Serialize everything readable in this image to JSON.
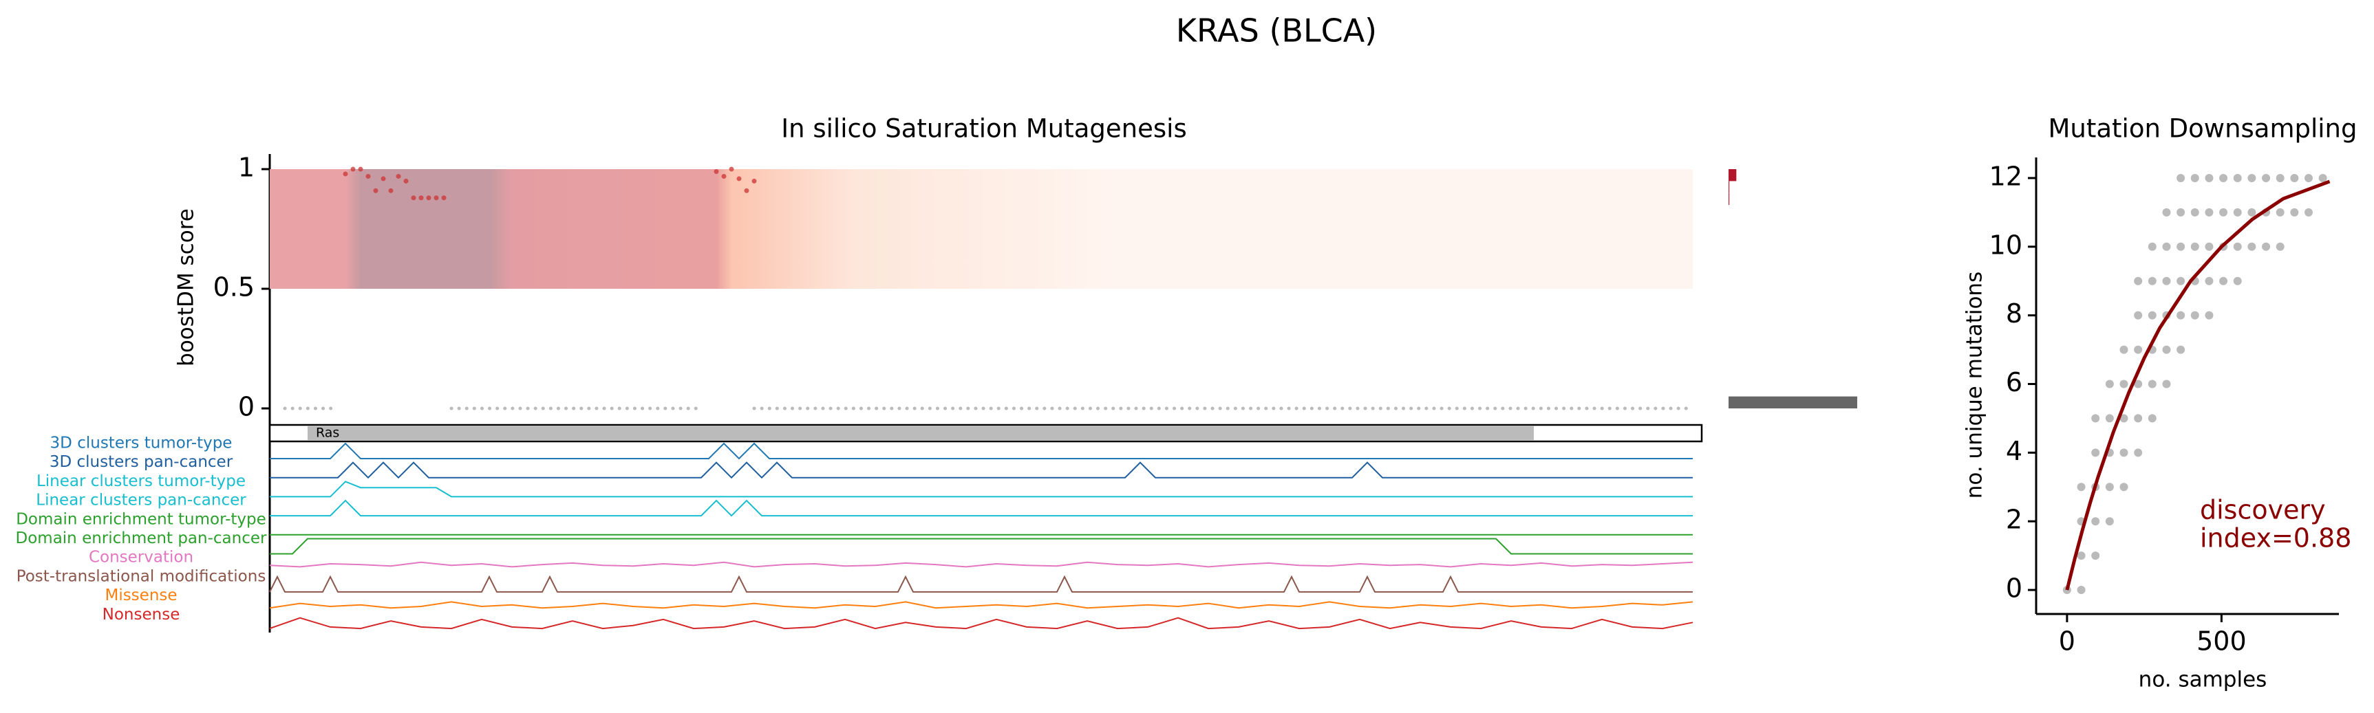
{
  "figure_title": "KRAS (BLCA)",
  "chart_data": [
    {
      "type": "saturation",
      "title": "In silico Saturation Mutagenesis",
      "ylabel": "boostDM score",
      "xlim": [
        1,
        189
      ],
      "ylim": [
        0,
        1
      ],
      "yticks": [
        0,
        0.5,
        1
      ],
      "heatmap_band": [
        0.5,
        1
      ],
      "heatmap_stops": [
        {
          "pos": 1,
          "color": "#e9a3a6"
        },
        {
          "pos": 11,
          "color": "#e9a3a6"
        },
        {
          "pos": 13,
          "color": "#c59aa2"
        },
        {
          "pos": 30,
          "color": "#c59aa2"
        },
        {
          "pos": 33,
          "color": "#e49ea3"
        },
        {
          "pos": 60,
          "color": "#e9a0a0"
        },
        {
          "pos": 62,
          "color": "#fcc5b0"
        },
        {
          "pos": 78,
          "color": "#fde6da"
        },
        {
          "pos": 113,
          "color": "#fff5f0"
        },
        {
          "pos": 189,
          "color": "#fff5f0"
        }
      ],
      "mutations": {
        "color": "#cc3333",
        "x": [
          11,
          12,
          13,
          14,
          15,
          16,
          17,
          18,
          19,
          20,
          21,
          22,
          23,
          24,
          60,
          61,
          62,
          63,
          64,
          65
        ],
        "values": [
          0.98,
          1.0,
          1.0,
          0.97,
          0.91,
          0.96,
          0.91,
          0.97,
          0.95,
          0.88,
          0.88,
          0.88,
          0.88,
          0.88,
          0.99,
          0.97,
          1.0,
          0.96,
          0.91,
          0.95
        ]
      },
      "low_score_segments": [
        {
          "start": 3,
          "end": 10,
          "score": 0
        },
        {
          "start": 25,
          "end": 58,
          "score": 0
        },
        {
          "start": 65,
          "end": 189,
          "score": 0
        }
      ],
      "side_histogram": {
        "xlim": [
          0,
          165
        ],
        "bins": [
          0,
          0.05,
          0.1,
          0.15,
          0.2,
          0.25,
          0.3,
          0.35,
          0.4,
          0.45,
          0.5,
          0.55,
          0.6,
          0.65,
          0.7,
          0.75,
          0.8,
          0.85,
          0.9,
          0.95,
          1
        ],
        "counts": [
          165,
          0,
          0,
          0,
          0,
          0,
          0,
          0,
          0,
          0,
          0,
          0,
          0,
          0,
          0,
          0,
          0,
          1,
          1,
          10
        ],
        "colors": [
          "#666666",
          "#666666",
          "#666666",
          "#666666",
          "#666666",
          "#666666",
          "#666666",
          "#666666",
          "#666666",
          "#666666",
          "#b2182b",
          "#b2182b",
          "#b2182b",
          "#b2182b",
          "#b2182b",
          "#b2182b",
          "#b2182b",
          "#b2182b",
          "#b2182b",
          "#b2182b"
        ]
      },
      "domains": [
        {
          "name": "Ras",
          "start": 6,
          "end": 168
        }
      ],
      "tracks": [
        {
          "name": "3D clusters tumor-type",
          "color": "#1f77b4",
          "x": [
            1,
            9,
            11,
            13,
            59,
            61,
            63,
            65,
            67,
            189
          ],
          "values": [
            0,
            0,
            1,
            0,
            0,
            1,
            0,
            1,
            0,
            0
          ]
        },
        {
          "name": "3D clusters pan-cancer",
          "color": "#1f5fa0",
          "x": [
            1,
            10,
            12,
            14,
            16,
            18,
            20,
            22,
            58,
            60,
            62,
            64,
            66,
            68,
            70,
            114,
            116,
            118,
            144,
            146,
            148,
            189
          ],
          "values": [
            0,
            0,
            1,
            0,
            1,
            0,
            1,
            0,
            0,
            1,
            0,
            1,
            0,
            1,
            0,
            0,
            1,
            0,
            0,
            1,
            0,
            0
          ]
        },
        {
          "name": "Linear clusters tumor-type",
          "color": "#17becf",
          "x": [
            1,
            9,
            11,
            13,
            23,
            25,
            189
          ],
          "values": [
            0,
            0,
            1,
            0.6,
            0.6,
            0,
            0
          ]
        },
        {
          "name": "Linear clusters pan-cancer",
          "color": "#17becf",
          "x": [
            1,
            9,
            11,
            13,
            58,
            60,
            62,
            64,
            66,
            189
          ],
          "values": [
            0,
            0,
            1,
            0,
            0,
            1,
            0,
            1,
            0,
            0
          ]
        },
        {
          "name": "Domain enrichment tumor-type",
          "color": "#2ca02c",
          "x": [
            1,
            189
          ],
          "values": [
            0,
            0
          ]
        },
        {
          "name": "Domain enrichment pan-cancer",
          "color": "#2ca02c",
          "x": [
            1,
            4,
            6,
            163,
            165,
            189
          ],
          "values": [
            0,
            0,
            1,
            1,
            0,
            0
          ]
        },
        {
          "name": "Conservation",
          "color": "#e377c2",
          "x": [
            1,
            5,
            9,
            13,
            17,
            21,
            25,
            29,
            33,
            37,
            41,
            45,
            49,
            53,
            57,
            61,
            65,
            69,
            73,
            77,
            81,
            85,
            89,
            93,
            97,
            101,
            105,
            109,
            113,
            117,
            121,
            125,
            129,
            133,
            137,
            141,
            145,
            149,
            153,
            157,
            161,
            165,
            169,
            173,
            177,
            181,
            185,
            189
          ],
          "values": [
            0.5,
            0.4,
            0.6,
            0.55,
            0.45,
            0.7,
            0.5,
            0.6,
            0.4,
            0.55,
            0.65,
            0.5,
            0.45,
            0.6,
            0.5,
            0.7,
            0.4,
            0.55,
            0.6,
            0.45,
            0.5,
            0.65,
            0.55,
            0.4,
            0.6,
            0.5,
            0.45,
            0.7,
            0.55,
            0.5,
            0.6,
            0.4,
            0.55,
            0.65,
            0.5,
            0.45,
            0.6,
            0.5,
            0.55,
            0.4,
            0.6,
            0.5,
            0.65,
            0.45,
            0.55,
            0.5,
            0.6,
            0.7
          ]
        },
        {
          "name": "Post-translational modifications",
          "color": "#8c564b",
          "x": [
            1,
            2,
            3,
            8,
            9,
            10,
            29,
            30,
            31,
            37,
            38,
            39,
            62,
            63,
            64,
            84,
            85,
            86,
            105,
            106,
            107,
            135,
            136,
            137,
            145,
            146,
            147,
            156,
            157,
            158,
            189
          ],
          "values": [
            0,
            1,
            0,
            0,
            1,
            0,
            0,
            1,
            0,
            0,
            1,
            0,
            0,
            1,
            0,
            0,
            1,
            0,
            0,
            1,
            0,
            0,
            1,
            0,
            0,
            1,
            0,
            0,
            1,
            0,
            0
          ]
        },
        {
          "name": "Missense",
          "color": "#ff7f0e",
          "x": [
            1,
            5,
            9,
            13,
            17,
            21,
            25,
            29,
            33,
            37,
            41,
            45,
            49,
            53,
            57,
            61,
            65,
            69,
            73,
            77,
            81,
            85,
            89,
            93,
            97,
            101,
            105,
            109,
            113,
            117,
            121,
            125,
            129,
            133,
            137,
            141,
            145,
            149,
            153,
            157,
            161,
            165,
            169,
            173,
            177,
            181,
            185,
            189
          ],
          "values": [
            0.2,
            0.5,
            0.3,
            0.4,
            0.2,
            0.3,
            0.6,
            0.3,
            0.4,
            0.2,
            0.3,
            0.5,
            0.3,
            0.2,
            0.4,
            0.3,
            0.5,
            0.3,
            0.2,
            0.4,
            0.3,
            0.6,
            0.2,
            0.3,
            0.4,
            0.3,
            0.5,
            0.2,
            0.3,
            0.4,
            0.3,
            0.5,
            0.2,
            0.4,
            0.3,
            0.6,
            0.3,
            0.2,
            0.4,
            0.3,
            0.5,
            0.3,
            0.4,
            0.2,
            0.3,
            0.5,
            0.4,
            0.6
          ]
        },
        {
          "name": "Nonsense",
          "color": "#d62728",
          "x": [
            1,
            5,
            9,
            13,
            17,
            21,
            25,
            29,
            33,
            37,
            41,
            45,
            49,
            53,
            57,
            61,
            65,
            69,
            73,
            77,
            81,
            85,
            89,
            93,
            97,
            101,
            105,
            109,
            113,
            117,
            121,
            125,
            129,
            133,
            137,
            141,
            145,
            149,
            153,
            157,
            161,
            165,
            169,
            173,
            177,
            181,
            185,
            189
          ],
          "values": [
            0.1,
            0.8,
            0.2,
            0.1,
            0.6,
            0.2,
            0.1,
            0.7,
            0.2,
            0.1,
            0.6,
            0.1,
            0.3,
            0.7,
            0.1,
            0.2,
            0.6,
            0.1,
            0.2,
            0.7,
            0.1,
            0.5,
            0.2,
            0.1,
            0.7,
            0.2,
            0.1,
            0.6,
            0.1,
            0.2,
            0.8,
            0.1,
            0.2,
            0.6,
            0.1,
            0.2,
            0.7,
            0.1,
            0.5,
            0.2,
            0.1,
            0.6,
            0.2,
            0.1,
            0.7,
            0.2,
            0.1,
            0.5
          ]
        }
      ]
    },
    {
      "type": "scatter",
      "title": "Mutation Downsampling",
      "xlabel": "no. samples",
      "ylabel": "no. unique mutations",
      "xlim": [
        -100,
        880
      ],
      "ylim": [
        -0.7,
        12.6
      ],
      "xticks": [
        0,
        500
      ],
      "yticks": [
        0,
        2,
        4,
        6,
        8,
        10,
        12
      ],
      "points": {
        "color": "#666666",
        "x": [
          0,
          46,
          92,
          138,
          184,
          230,
          276,
          322,
          368,
          414,
          460,
          506,
          552,
          598,
          644,
          690,
          736,
          782,
          828
        ],
        "values": [
          [
            0
          ],
          [
            0,
            1,
            2,
            3
          ],
          [
            1,
            2,
            3,
            4,
            5
          ],
          [
            2,
            3,
            4,
            5,
            6
          ],
          [
            3,
            4,
            5,
            6,
            7
          ],
          [
            4,
            5,
            6,
            7,
            8,
            9
          ],
          [
            5,
            6,
            7,
            8,
            9,
            10
          ],
          [
            6,
            7,
            8,
            9,
            10,
            11
          ],
          [
            7,
            8,
            9,
            10,
            11,
            12
          ],
          [
            8,
            9,
            10,
            11,
            12
          ],
          [
            8,
            9,
            10,
            11,
            12
          ],
          [
            9,
            10,
            11,
            12
          ],
          [
            9,
            10,
            11,
            12
          ],
          [
            10,
            11,
            12
          ],
          [
            10,
            11,
            12
          ],
          [
            10,
            11,
            12
          ],
          [
            11,
            12
          ],
          [
            11,
            12
          ],
          [
            12
          ]
        ]
      },
      "fit": {
        "color": "#8b0000",
        "x": [
          0,
          25,
          50,
          75,
          100,
          150,
          200,
          250,
          300,
          400,
          500,
          600,
          700,
          850
        ],
        "values": [
          0,
          0.91,
          1.75,
          2.54,
          3.28,
          4.6,
          5.75,
          6.76,
          7.63,
          9.0,
          10.0,
          10.8,
          11.4,
          11.9
        ]
      },
      "annotation_color": "#8b0000",
      "annotation_lines": [
        "discovery",
        "index=0.88"
      ]
    }
  ]
}
